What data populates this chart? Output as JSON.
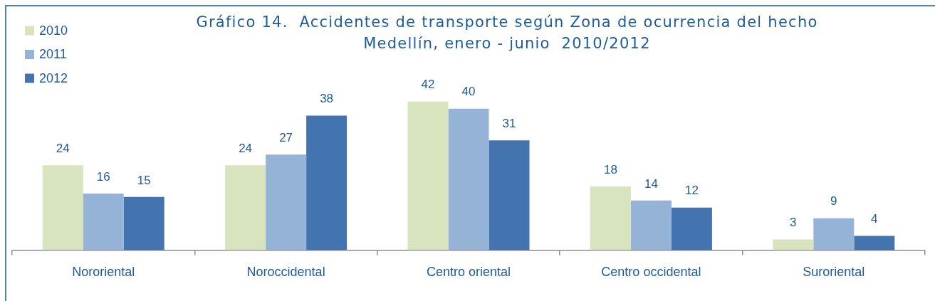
{
  "chart_data": {
    "type": "bar",
    "title": "Gráfico 14.  Accidentes de transporte según Zona de ocurrencia del hecho",
    "subtitle": "Medellín, enero - junio  2010/2012",
    "categories": [
      "Nororiental",
      "Noroccidental",
      "Centro oriental",
      "Centro occidental",
      "Suroriental"
    ],
    "series": [
      {
        "name": "2010",
        "color": "#d7e4bd",
        "values": [
          24,
          24,
          42,
          18,
          3
        ]
      },
      {
        "name": "2011",
        "color": "#95b3d7",
        "values": [
          16,
          27,
          40,
          14,
          9
        ]
      },
      {
        "name": "2012",
        "color": "#4474b0",
        "values": [
          15,
          38,
          31,
          12,
          4
        ]
      }
    ],
    "data_labels": true,
    "legend": "top left"
  }
}
